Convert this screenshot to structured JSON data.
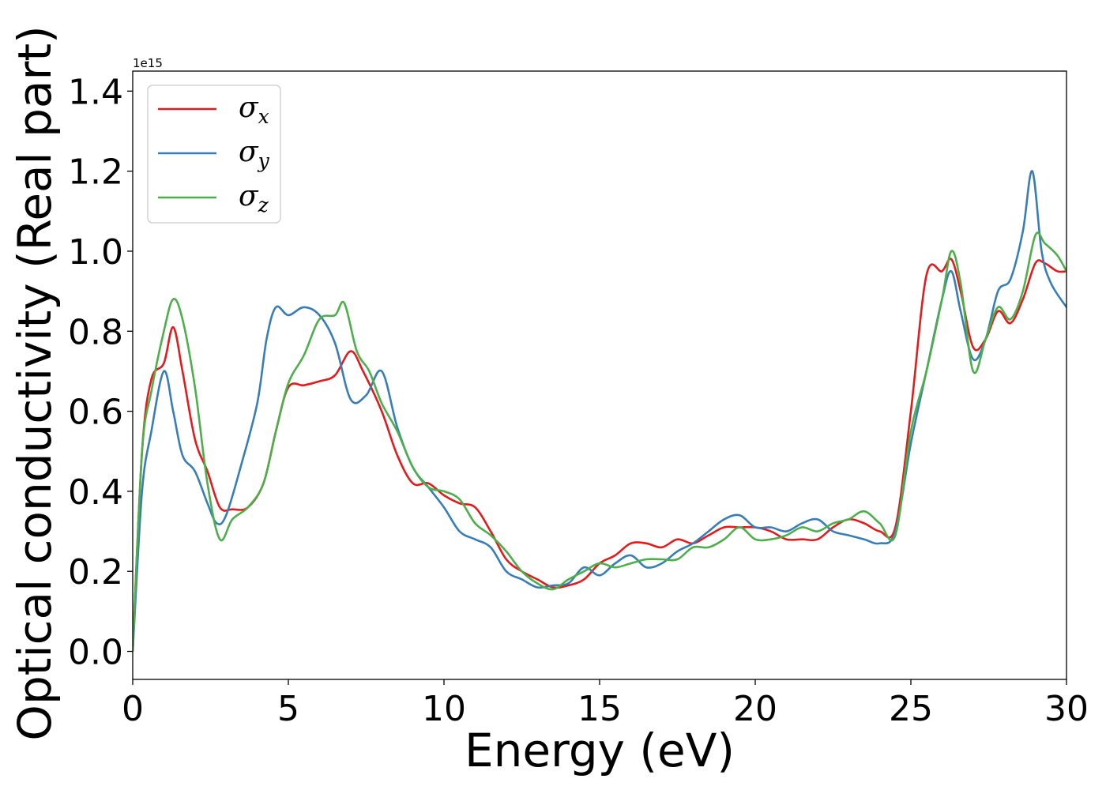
{
  "chart_data": {
    "type": "line",
    "xlabel": "Energy (eV)",
    "ylabel": "Optical conductivity (Real part)",
    "y_offset_label": "1e15",
    "xlim": [
      0,
      30
    ],
    "ylim": [
      -0.07,
      1.45
    ],
    "xticks": [
      0,
      5,
      10,
      15,
      20,
      25,
      30
    ],
    "xtick_labels": [
      "0",
      "5",
      "10",
      "15",
      "20",
      "25",
      "30"
    ],
    "yticks": [
      0.0,
      0.2,
      0.4,
      0.6,
      0.8,
      1.0,
      1.2,
      1.4
    ],
    "ytick_labels": [
      "0.0",
      "0.2",
      "0.4",
      "0.6",
      "0.8",
      "1.0",
      "1.2",
      "1.4"
    ],
    "grid": false,
    "legend_position": "top-left",
    "series": [
      {
        "name": "σx",
        "legend_base": "σ",
        "legend_sub": "x",
        "color": "#e41a1c",
        "points": [
          [
            0,
            0.0
          ],
          [
            0.3,
            0.5
          ],
          [
            0.6,
            0.68
          ],
          [
            1.0,
            0.72
          ],
          [
            1.3,
            0.81
          ],
          [
            1.6,
            0.7
          ],
          [
            2.0,
            0.53
          ],
          [
            2.4,
            0.45
          ],
          [
            2.8,
            0.36
          ],
          [
            3.2,
            0.355
          ],
          [
            3.7,
            0.36
          ],
          [
            4.2,
            0.42
          ],
          [
            4.6,
            0.55
          ],
          [
            5.0,
            0.66
          ],
          [
            5.5,
            0.665
          ],
          [
            6.0,
            0.675
          ],
          [
            6.5,
            0.69
          ],
          [
            7.0,
            0.75
          ],
          [
            7.4,
            0.7
          ],
          [
            8.0,
            0.6
          ],
          [
            8.5,
            0.49
          ],
          [
            9.0,
            0.42
          ],
          [
            9.5,
            0.42
          ],
          [
            10.0,
            0.39
          ],
          [
            10.5,
            0.37
          ],
          [
            11.0,
            0.36
          ],
          [
            11.5,
            0.3
          ],
          [
            12.0,
            0.23
          ],
          [
            12.5,
            0.2
          ],
          [
            13.0,
            0.18
          ],
          [
            13.5,
            0.16
          ],
          [
            14.0,
            0.165
          ],
          [
            14.5,
            0.18
          ],
          [
            15.0,
            0.22
          ],
          [
            15.5,
            0.24
          ],
          [
            16.0,
            0.27
          ],
          [
            16.5,
            0.27
          ],
          [
            17.0,
            0.26
          ],
          [
            17.5,
            0.28
          ],
          [
            18.0,
            0.27
          ],
          [
            18.5,
            0.29
          ],
          [
            19.0,
            0.31
          ],
          [
            19.5,
            0.31
          ],
          [
            20.0,
            0.31
          ],
          [
            20.5,
            0.3
          ],
          [
            21.0,
            0.28
          ],
          [
            21.5,
            0.28
          ],
          [
            22.0,
            0.28
          ],
          [
            22.5,
            0.31
          ],
          [
            23.0,
            0.33
          ],
          [
            23.5,
            0.32
          ],
          [
            24.0,
            0.3
          ],
          [
            24.5,
            0.31
          ],
          [
            25.0,
            0.6
          ],
          [
            25.5,
            0.94
          ],
          [
            26.0,
            0.95
          ],
          [
            26.3,
            0.98
          ],
          [
            26.6,
            0.9
          ],
          [
            27.0,
            0.76
          ],
          [
            27.4,
            0.78
          ],
          [
            27.8,
            0.85
          ],
          [
            28.2,
            0.82
          ],
          [
            28.6,
            0.88
          ],
          [
            29.0,
            0.97
          ],
          [
            29.3,
            0.97
          ],
          [
            29.7,
            0.95
          ],
          [
            30.0,
            0.95
          ]
        ]
      },
      {
        "name": "σy",
        "legend_base": "σ",
        "legend_sub": "y",
        "color": "#377eb8",
        "points": [
          [
            0,
            0.0
          ],
          [
            0.3,
            0.4
          ],
          [
            0.6,
            0.55
          ],
          [
            1.0,
            0.7
          ],
          [
            1.3,
            0.6
          ],
          [
            1.6,
            0.49
          ],
          [
            2.0,
            0.45
          ],
          [
            2.4,
            0.37
          ],
          [
            2.7,
            0.32
          ],
          [
            3.0,
            0.34
          ],
          [
            3.5,
            0.47
          ],
          [
            4.0,
            0.62
          ],
          [
            4.3,
            0.78
          ],
          [
            4.6,
            0.86
          ],
          [
            5.0,
            0.84
          ],
          [
            5.5,
            0.86
          ],
          [
            6.0,
            0.84
          ],
          [
            6.5,
            0.77
          ],
          [
            7.0,
            0.63
          ],
          [
            7.5,
            0.64
          ],
          [
            8.0,
            0.7
          ],
          [
            8.5,
            0.56
          ],
          [
            9.0,
            0.46
          ],
          [
            9.5,
            0.41
          ],
          [
            10.0,
            0.36
          ],
          [
            10.5,
            0.3
          ],
          [
            11.0,
            0.28
          ],
          [
            11.5,
            0.26
          ],
          [
            12.0,
            0.2
          ],
          [
            12.5,
            0.18
          ],
          [
            13.0,
            0.16
          ],
          [
            13.5,
            0.165
          ],
          [
            14.0,
            0.17
          ],
          [
            14.5,
            0.21
          ],
          [
            15.0,
            0.19
          ],
          [
            15.5,
            0.22
          ],
          [
            16.0,
            0.24
          ],
          [
            16.5,
            0.21
          ],
          [
            17.0,
            0.22
          ],
          [
            17.5,
            0.25
          ],
          [
            18.0,
            0.27
          ],
          [
            18.5,
            0.3
          ],
          [
            19.0,
            0.33
          ],
          [
            19.5,
            0.34
          ],
          [
            20.0,
            0.31
          ],
          [
            20.5,
            0.31
          ],
          [
            21.0,
            0.3
          ],
          [
            21.5,
            0.32
          ],
          [
            22.0,
            0.33
          ],
          [
            22.5,
            0.3
          ],
          [
            23.0,
            0.29
          ],
          [
            23.5,
            0.28
          ],
          [
            24.0,
            0.27
          ],
          [
            24.5,
            0.3
          ],
          [
            25.0,
            0.52
          ],
          [
            25.5,
            0.7
          ],
          [
            26.0,
            0.88
          ],
          [
            26.3,
            0.95
          ],
          [
            26.6,
            0.85
          ],
          [
            27.0,
            0.73
          ],
          [
            27.4,
            0.78
          ],
          [
            27.8,
            0.9
          ],
          [
            28.2,
            0.93
          ],
          [
            28.6,
            1.05
          ],
          [
            28.9,
            1.2
          ],
          [
            29.2,
            1.0
          ],
          [
            29.5,
            0.92
          ],
          [
            30.0,
            0.86
          ]
        ]
      },
      {
        "name": "σz",
        "legend_base": "σ",
        "legend_sub": "z",
        "color": "#4daf4a",
        "points": [
          [
            0,
            0.0
          ],
          [
            0.3,
            0.5
          ],
          [
            0.6,
            0.65
          ],
          [
            1.0,
            0.8
          ],
          [
            1.3,
            0.88
          ],
          [
            1.6,
            0.83
          ],
          [
            2.0,
            0.66
          ],
          [
            2.4,
            0.42
          ],
          [
            2.8,
            0.28
          ],
          [
            3.2,
            0.33
          ],
          [
            3.7,
            0.36
          ],
          [
            4.2,
            0.42
          ],
          [
            4.6,
            0.55
          ],
          [
            5.0,
            0.67
          ],
          [
            5.5,
            0.74
          ],
          [
            6.0,
            0.83
          ],
          [
            6.5,
            0.84
          ],
          [
            6.8,
            0.87
          ],
          [
            7.2,
            0.75
          ],
          [
            7.6,
            0.7
          ],
          [
            8.0,
            0.62
          ],
          [
            8.5,
            0.55
          ],
          [
            9.0,
            0.46
          ],
          [
            9.5,
            0.41
          ],
          [
            10.0,
            0.4
          ],
          [
            10.5,
            0.38
          ],
          [
            11.0,
            0.32
          ],
          [
            11.5,
            0.29
          ],
          [
            12.0,
            0.25
          ],
          [
            12.5,
            0.2
          ],
          [
            13.0,
            0.17
          ],
          [
            13.5,
            0.155
          ],
          [
            14.0,
            0.18
          ],
          [
            14.5,
            0.2
          ],
          [
            15.0,
            0.22
          ],
          [
            15.5,
            0.21
          ],
          [
            16.0,
            0.22
          ],
          [
            16.5,
            0.23
          ],
          [
            17.0,
            0.23
          ],
          [
            17.5,
            0.23
          ],
          [
            18.0,
            0.26
          ],
          [
            18.5,
            0.26
          ],
          [
            19.0,
            0.28
          ],
          [
            19.5,
            0.31
          ],
          [
            20.0,
            0.28
          ],
          [
            20.5,
            0.28
          ],
          [
            21.0,
            0.29
          ],
          [
            21.5,
            0.31
          ],
          [
            22.0,
            0.3
          ],
          [
            22.5,
            0.32
          ],
          [
            23.0,
            0.33
          ],
          [
            23.5,
            0.35
          ],
          [
            24.0,
            0.32
          ],
          [
            24.5,
            0.29
          ],
          [
            25.0,
            0.55
          ],
          [
            25.5,
            0.7
          ],
          [
            26.0,
            0.88
          ],
          [
            26.3,
            1.0
          ],
          [
            26.6,
            0.92
          ],
          [
            27.0,
            0.7
          ],
          [
            27.4,
            0.78
          ],
          [
            27.8,
            0.86
          ],
          [
            28.2,
            0.83
          ],
          [
            28.6,
            0.9
          ],
          [
            29.0,
            1.04
          ],
          [
            29.3,
            1.02
          ],
          [
            29.7,
            0.99
          ],
          [
            30.0,
            0.95
          ]
        ]
      }
    ]
  }
}
